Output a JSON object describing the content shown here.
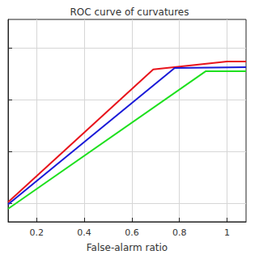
{
  "chart_data": {
    "type": "line",
    "title": "ROC curve of curvatures",
    "x_label": "False-alarm ratio",
    "xlim": [
      0.08,
      1.08
    ],
    "xticks": [
      0.2,
      0.4,
      0.6,
      0.8,
      1
    ],
    "ylim": [
      0.13,
      0.91
    ],
    "yticks": [
      0.2,
      0.4,
      0.6,
      0.8
    ],
    "grid": true,
    "tick_labels": "x",
    "series": [
      {
        "color": "#e8141c",
        "x": [
          0.08,
          0.69,
          1.0,
          1.08
        ],
        "values": [
          0.206,
          0.717,
          0.748,
          0.748
        ]
      },
      {
        "color": "#1a1ad8",
        "x": [
          0.08,
          0.78,
          1.08
        ],
        "values": [
          0.197,
          0.723,
          0.726
        ]
      },
      {
        "color": "#1ee01e",
        "x": [
          0.08,
          0.91,
          1.08
        ],
        "values": [
          0.18,
          0.71,
          0.71
        ]
      }
    ]
  }
}
